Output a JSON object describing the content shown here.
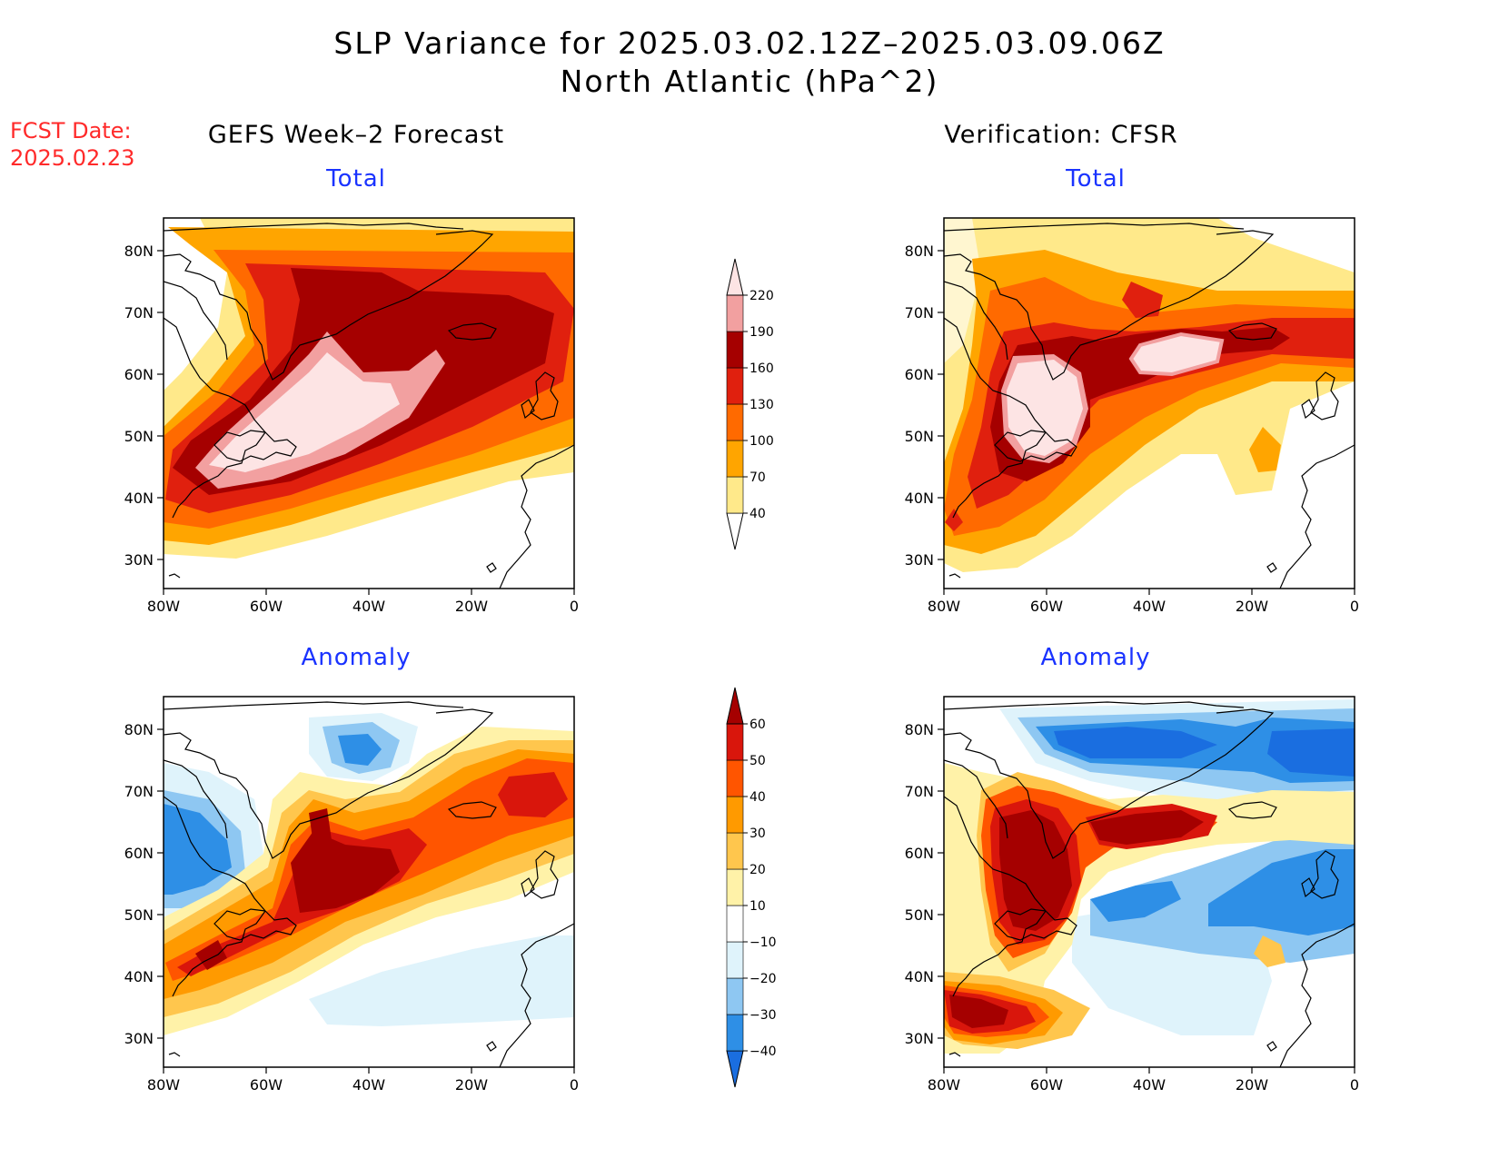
{
  "title": {
    "line1": "SLP Variance for 2025.03.02.12Z–2025.03.09.06Z",
    "line2": "North Atlantic (hPa^2)"
  },
  "fcst": {
    "label": "FCST Date:",
    "date": "2025.02.23"
  },
  "columns": {
    "left": "GEFS Week–2 Forecast",
    "right": "Verification: CFSR"
  },
  "panels": {
    "total": "Total",
    "anomaly": "Anomaly"
  },
  "axes": {
    "lat": [
      "80N",
      "70N",
      "60N",
      "50N",
      "40N",
      "30N"
    ],
    "lon": [
      "80W",
      "60W",
      "40W",
      "20W",
      "0"
    ]
  },
  "colorbars": {
    "total": {
      "levels": [
        "40",
        "70",
        "100",
        "130",
        "160",
        "190",
        "220"
      ],
      "colors": [
        "#ffe98a",
        "#ffa500",
        "#ff6a00",
        "#e0200e",
        "#a50000",
        "#f2a0a0",
        "#fde4e4"
      ]
    },
    "anomaly": {
      "levels": [
        "−40",
        "−30",
        "−20",
        "−10",
        "10",
        "20",
        "30",
        "40",
        "50",
        "60"
      ],
      "colors": [
        "#1a6ee0",
        "#2e8fe6",
        "#8ec7f2",
        "#dff3fb",
        "#ffffff",
        "#fff2a8",
        "#ffc64d",
        "#ff9a00",
        "#ff5500",
        "#d9160c",
        "#a50000"
      ]
    }
  },
  "palette": {
    "total": [
      "#ffffff",
      "#ffe98a",
      "#ffa500",
      "#ff6a00",
      "#e0200e",
      "#a50000",
      "#f2a0a0",
      "#fde4e4"
    ],
    "anomaly_pos": [
      "#fff2a8",
      "#ffc64d",
      "#ff9a00",
      "#ff5500",
      "#d9160c",
      "#a50000"
    ],
    "anomaly_neg": [
      "#dff3fb",
      "#8ec7f2",
      "#2e8fe6",
      "#1a6ee0"
    ]
  }
}
